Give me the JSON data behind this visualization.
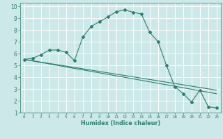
{
  "xlabel": "Humidex (Indice chaleur)",
  "bg_color": "#cce8e8",
  "grid_color": "#ffffff",
  "line_color": "#2d7d6e",
  "xlim": [
    -0.5,
    23.5
  ],
  "ylim": [
    1,
    10.3
  ],
  "xticks": [
    0,
    1,
    2,
    3,
    4,
    5,
    6,
    7,
    8,
    9,
    10,
    11,
    12,
    13,
    14,
    15,
    16,
    17,
    18,
    19,
    20,
    21,
    22,
    23
  ],
  "yticks": [
    1,
    2,
    3,
    4,
    5,
    6,
    7,
    8,
    9,
    10
  ],
  "curve1_x": [
    0,
    1,
    2,
    3,
    4,
    5,
    6,
    7,
    8,
    9,
    10,
    11,
    12,
    13,
    14,
    15,
    16,
    17,
    18,
    19,
    20,
    21,
    22,
    23
  ],
  "curve1_y": [
    5.5,
    5.6,
    5.9,
    6.3,
    6.3,
    6.1,
    5.4,
    7.4,
    8.3,
    8.7,
    9.1,
    9.55,
    9.7,
    9.5,
    9.35,
    7.8,
    7.0,
    5.0,
    3.2,
    2.6,
    1.9,
    2.9,
    1.5,
    1.4
  ],
  "line2_x": [
    0,
    23
  ],
  "line2_y": [
    5.5,
    2.9
  ],
  "line3_x": [
    0,
    23
  ],
  "line3_y": [
    5.5,
    2.6
  ]
}
